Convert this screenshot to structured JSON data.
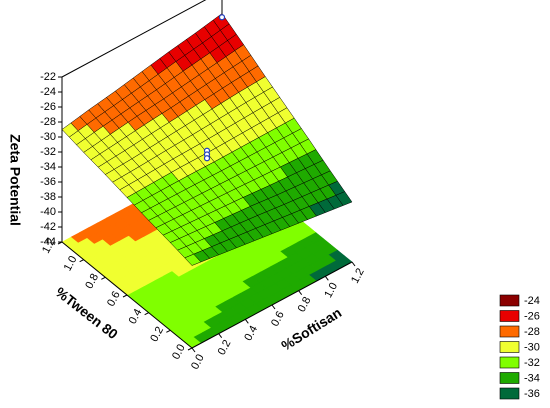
{
  "chart_data": {
    "type": "surface3d",
    "zlabel": "Zeta Potential",
    "xlabel": "%Softisan",
    "ylabel": "%Tween 80",
    "xlim": [
      0,
      1.2
    ],
    "ylim": [
      0,
      1.2
    ],
    "zlim": [
      -44,
      -22
    ],
    "xticks": [
      {
        "value": 0,
        "label": "0.0"
      },
      0.2,
      0.4,
      0.6,
      0.8,
      {
        "value": 1,
        "label": "1.0"
      },
      1.2
    ],
    "yticks": [
      {
        "value": 0,
        "label": "0.0"
      },
      0.2,
      0.4,
      0.6,
      0.8,
      {
        "value": 1,
        "label": "1.0"
      },
      1.2
    ],
    "zticks": [
      -44,
      -42,
      -40,
      -38,
      -36,
      -34,
      -32,
      -30,
      -28,
      -26,
      -24,
      -22
    ],
    "softisan": [
      0,
      0.2,
      0.4,
      0.6,
      0.8,
      1.0,
      1.2
    ],
    "tween": [
      0,
      0.2,
      0.4,
      0.6,
      0.8,
      1.0,
      1.2
    ],
    "zeta": [
      [
        -33,
        -33.5,
        -34,
        -34.5,
        -35,
        -35.5,
        -36
      ],
      [
        -32.3,
        -32.6,
        -32.9,
        -33.2,
        -33.6,
        -33.9,
        -34.2
      ],
      [
        -31.7,
        -31.8,
        -31.9,
        -32.0,
        -32.1,
        -32.2,
        -32.3
      ],
      [
        -31,
        -30.9,
        -30.8,
        -30.8,
        -30.7,
        -30.6,
        -30.5
      ],
      [
        -30.3,
        -30.1,
        -29.8,
        -29.5,
        -29.2,
        -28.9,
        -28.7
      ],
      [
        -29.7,
        -29.2,
        -28.7,
        -28.3,
        -27.8,
        -27.3,
        -26.8
      ],
      [
        -29,
        -28.3,
        -27.7,
        -27,
        -26.3,
        -25.7,
        -25
      ]
    ],
    "points": {
      "softisan": [
        1.2,
        0.6,
        0.6,
        0.6
      ],
      "tween": [
        1.2,
        0.6,
        0.6,
        0.6
      ],
      "zeta": [
        -25.5,
        -30.5,
        -31,
        -31.5
      ]
    },
    "legend": {
      "levels": [
        -24,
        -26,
        -28,
        -30,
        -32,
        -34,
        -36
      ],
      "colors": [
        "#8b0000",
        "#e80000",
        "#ff6a00",
        "#f0ff30",
        "#80ff00",
        "#1faa00",
        "#006a3a"
      ]
    }
  }
}
